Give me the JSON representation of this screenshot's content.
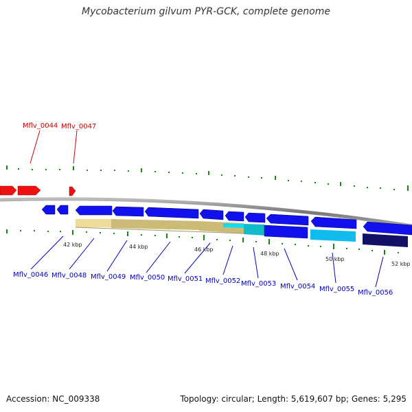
{
  "title": "Mycobacterium gilvum PYR-GCK, complete genome",
  "footer": {
    "accession": "Accession: NC_009338",
    "topology": "Topology: circular; Length: 5,619,607 bp; Genes: 5,295"
  },
  "colors": {
    "forward_gene": "#ee1111",
    "forward_label": "#cc0000",
    "reverse_gene": "#1111ee",
    "reverse_label": "#0000bb",
    "highlight_cyan": "#11ccee",
    "highlight_dark": "#111166",
    "highlight_tan": "#eedd99",
    "backbone": "#888888",
    "ticks": "#118811"
  },
  "forward_labels": [
    "Mflv_0044",
    "Mflv_0047"
  ],
  "reverse_labels": [
    "Mflv_0046",
    "Mflv_0048",
    "Mflv_0049",
    "Mflv_0050",
    "Mflv_0051",
    "Mflv_0052",
    "Mflv_0053",
    "Mflv_0054",
    "Mflv_0055",
    "Mflv_0056"
  ],
  "kbp_labels": [
    "42 kbp",
    "44 kbp",
    "46 kbp",
    "48 kbp",
    "50 kbp",
    "52 kbp"
  ]
}
